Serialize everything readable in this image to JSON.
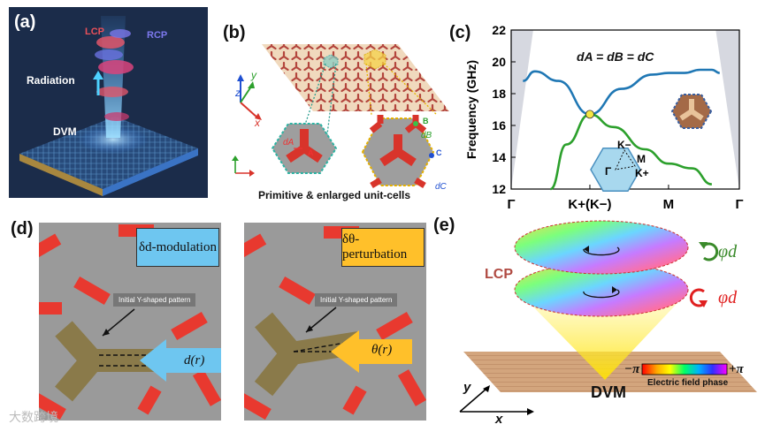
{
  "panel_a": {
    "label": "(a)",
    "lcp": "LCP",
    "rcp": "RCP",
    "radiation": "Radiation",
    "dvm": "DVM"
  },
  "panel_b": {
    "label": "(b)",
    "caption": "Primitive & enlarged unit-cells",
    "axis_x": "x",
    "axis_y": "y",
    "axis_z": "z",
    "d_a": "dA",
    "d_b": "dB",
    "d_c": "dC",
    "site_a": "A",
    "site_b": "B",
    "site_c": "C"
  },
  "panel_c": {
    "label": "(c)",
    "equation": "dA = dB = dC",
    "inset_k_minus": "K−",
    "inset_k_plus": "K+",
    "inset_m": "M",
    "inset_gamma": "Γ"
  },
  "panel_d": {
    "label": "(d)",
    "left_title": "δd-modulation",
    "left_note": "Initial Y-shaped pattern",
    "left_arrow": "d(r)",
    "right_title": "δθ-perturbation",
    "right_note": "Initial Y-shaped pattern",
    "right_arrow": "θ(r)"
  },
  "panel_e": {
    "label": "(e)",
    "lcp": "LCP",
    "phi_top": "φd",
    "phi_bottom": "φd",
    "minus_pi": "−π",
    "plus_pi": "+π",
    "phase_label": "Electric field phase",
    "dvm": "DVM",
    "axis_x": "x",
    "axis_y": "y"
  },
  "watermark": "大数跨境",
  "colors": {
    "panel_a_bg": "#1a2a45",
    "blue_band": "#1f77b4",
    "green_band": "#2ca02c",
    "dirac_point": "#f5e642",
    "red_pattern": "#e8392f",
    "title_blue": "#6ec6f0",
    "title_orange": "#ffc02a"
  },
  "chart_data": {
    "type": "line",
    "title": "",
    "xlabel": "",
    "ylabel": "Frequency (GHz)",
    "ylim": [
      12,
      22
    ],
    "yticks": [
      12,
      14,
      16,
      18,
      20,
      22
    ],
    "categories": [
      "Γ",
      "K+(K−)",
      "M",
      "Γ"
    ],
    "x": [
      0,
      1,
      2,
      2.9
    ],
    "series": [
      {
        "name": "upper band",
        "x": [
          0.15,
          0.3,
          0.6,
          1.0,
          1.4,
          1.8,
          2.0,
          2.2,
          2.4,
          2.55,
          2.65
        ],
        "values": [
          18.8,
          19.4,
          18.8,
          16.7,
          18.3,
          19.2,
          19.3,
          19.3,
          19.5,
          19.5,
          19.3
        ]
      },
      {
        "name": "lower band",
        "x": [
          0.5,
          0.7,
          1.0,
          1.3,
          1.7,
          2.0,
          2.3,
          2.55
        ],
        "values": [
          12.0,
          14.8,
          16.7,
          15.9,
          14.5,
          13.6,
          13.3,
          12.3
        ]
      }
    ],
    "dirac_point": {
      "x": 1.0,
      "y": 16.7
    }
  }
}
